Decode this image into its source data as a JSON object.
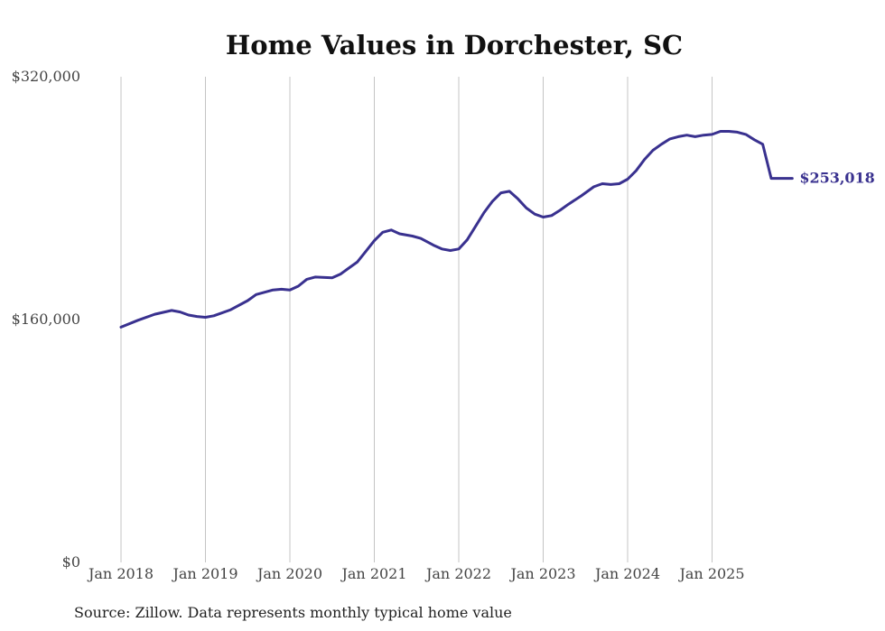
{
  "chart_data": {
    "type": "line",
    "title": "Home Values in Dorchester, SC",
    "xlabel": "",
    "ylabel": "",
    "ylim": [
      0,
      320000
    ],
    "xlim": [
      2018.0,
      2026.0
    ],
    "yticks": [
      {
        "value": 0,
        "label": "$0"
      },
      {
        "value": 160000,
        "label": "$160,000"
      },
      {
        "value": 320000,
        "label": "$320,000"
      }
    ],
    "xticks": [
      {
        "value": 2018,
        "label": "Jan 2018"
      },
      {
        "value": 2019,
        "label": "Jan 2019"
      },
      {
        "value": 2020,
        "label": "Jan 2020"
      },
      {
        "value": 2021,
        "label": "Jan 2021"
      },
      {
        "value": 2022,
        "label": "Jan 2022"
      },
      {
        "value": 2023,
        "label": "Jan 2023"
      },
      {
        "value": 2024,
        "label": "Jan 2024"
      },
      {
        "value": 2025,
        "label": "Jan 2025"
      }
    ],
    "grid": "vertical",
    "series": [
      {
        "name": "Typical home value",
        "color": "#39318f",
        "end_label": "$253,018",
        "x": [
          2018.0,
          2018.2,
          2018.4,
          2018.6,
          2018.7,
          2018.8,
          2018.9,
          2019.0,
          2019.1,
          2019.3,
          2019.5,
          2019.6,
          2019.8,
          2019.9,
          2020.0,
          2020.1,
          2020.2,
          2020.3,
          2020.5,
          2020.6,
          2020.8,
          2020.9,
          2021.0,
          2021.1,
          2021.2,
          2021.3,
          2021.45,
          2021.55,
          2021.7,
          2021.8,
          2021.9,
          2022.0,
          2022.1,
          2022.2,
          2022.3,
          2022.4,
          2022.5,
          2022.6,
          2022.7,
          2022.8,
          2022.9,
          2023.0,
          2023.1,
          2023.2,
          2023.3,
          2023.45,
          2023.6,
          2023.7,
          2023.8,
          2023.9,
          2024.0,
          2024.1,
          2024.2,
          2024.3,
          2024.4,
          2024.5,
          2024.6,
          2024.7,
          2024.8,
          2024.9,
          2025.0,
          2025.1,
          2025.2,
          2025.3,
          2025.4,
          2025.5,
          2025.6,
          2025.7,
          2025.8,
          2025.95
        ],
        "values": [
          155000,
          159500,
          163500,
          166000,
          165000,
          163000,
          162000,
          161500,
          162500,
          166500,
          172500,
          176500,
          179500,
          180000,
          179500,
          182000,
          186500,
          188000,
          187500,
          190000,
          198000,
          205000,
          212000,
          217500,
          219000,
          216500,
          215000,
          213500,
          209000,
          206500,
          205500,
          206500,
          212500,
          221500,
          230500,
          238000,
          243500,
          244500,
          239500,
          233500,
          229500,
          227500,
          228500,
          232000,
          236000,
          241500,
          247500,
          249500,
          249000,
          249500,
          252500,
          258000,
          265500,
          271500,
          275500,
          279000,
          280500,
          281500,
          280500,
          281500,
          282000,
          284000,
          284000,
          283500,
          282000,
          278500,
          275500,
          253018,
          253018,
          253018
        ]
      }
    ],
    "annotations": [
      "$253,018"
    ],
    "source": "Source: Zillow. Data represents monthly typical home value"
  }
}
